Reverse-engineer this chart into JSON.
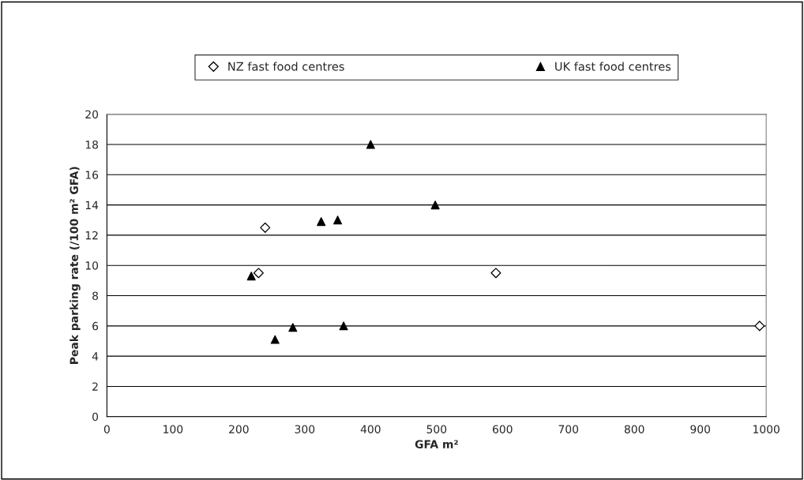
{
  "chart_data": {
    "type": "scatter",
    "xlabel": "GFA m²",
    "ylabel": "Peak parking rate (/100 m² GFA)",
    "series": [
      {
        "name": "NZ fast food centres",
        "color": "#000000",
        "marker": "diamond",
        "x": [
          240,
          230,
          590,
          990
        ],
        "values": [
          12.5,
          9.5,
          9.5,
          6
        ]
      },
      {
        "name": "UK fast food centres",
        "color": "#000000",
        "marker": "triangle",
        "x": [
          219,
          255,
          282,
          325,
          350,
          359,
          400,
          498
        ],
        "values": [
          9.3,
          5.1,
          5.9,
          12.9,
          13.0,
          6.0,
          18,
          14.0
        ]
      }
    ],
    "xlim": [
      0,
      1000
    ],
    "xticks": [
      0,
      100,
      200,
      300,
      400,
      500,
      600,
      700,
      800,
      900,
      1000
    ],
    "ylim": [
      0,
      20
    ],
    "yticks": [
      0,
      2,
      4,
      6,
      8,
      10,
      12,
      14,
      16,
      18,
      20
    ],
    "grid": "y",
    "legend": "top"
  }
}
